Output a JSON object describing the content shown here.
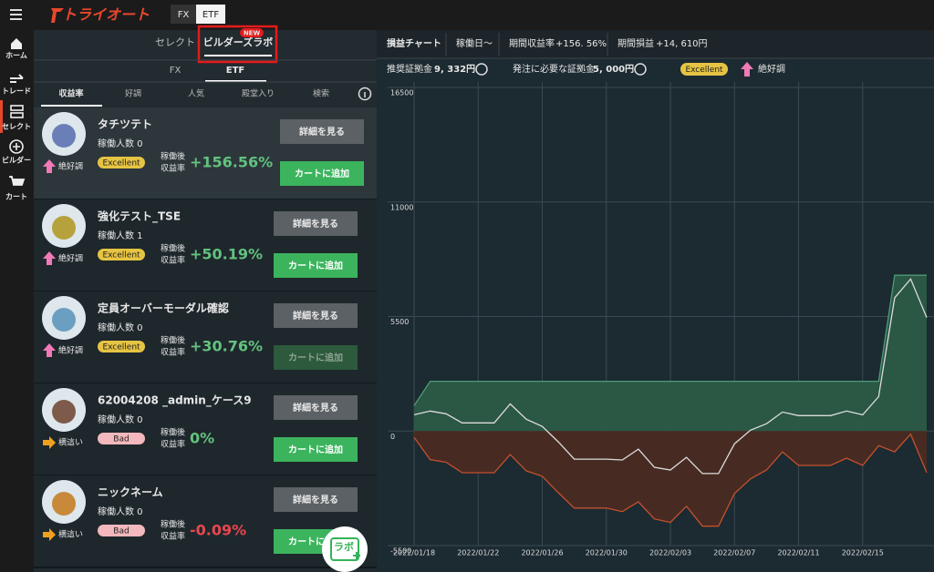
{
  "header": {
    "logo": "トライオート",
    "tabs": [
      "FX",
      "ETF"
    ]
  },
  "sidebar": [
    "ホーム",
    "トレード",
    "セレクト",
    "ビルダー",
    "カート"
  ],
  "panel": {
    "tabs": [
      "セレクト",
      "ビルダーズラボ"
    ],
    "badge": "NEW",
    "markets": [
      "FX",
      "ETF"
    ],
    "sort_tabs": [
      "収益率",
      "好調",
      "人気",
      "殿堂入り",
      "検索"
    ]
  },
  "cards": [
    {
      "name": "タチツテト",
      "users": "稼働人数 0",
      "rating": "Excellent",
      "rating_color": "#e6c443",
      "trend": "絶好調",
      "trend_icon": "up",
      "return_label": [
        "稼働後",
        "収益率"
      ],
      "return": "+156.56%",
      "return_color": "#63c27f",
      "detail": "詳細を見る",
      "add": "カートに追加",
      "add_enabled": true
    },
    {
      "name": "強化テスト_TSE",
      "users": "稼働人数 1",
      "rating": "Excellent",
      "rating_color": "#e6c443",
      "trend": "絶好調",
      "trend_icon": "up",
      "return_label": [
        "稼働後",
        "収益率"
      ],
      "return": "+50.19%",
      "return_color": "#63c27f",
      "detail": "詳細を見る",
      "add": "カートに追加",
      "add_enabled": true
    },
    {
      "name": "定員オーバーモーダル確認",
      "users": "稼働人数 0",
      "rating": "Excellent",
      "rating_color": "#e6c443",
      "trend": "絶好調",
      "trend_icon": "up",
      "return_label": [
        "稼働後",
        "収益率"
      ],
      "return": "+30.76%",
      "return_color": "#63c27f",
      "detail": "詳細を見る",
      "add": "カートに追加",
      "add_enabled": false
    },
    {
      "name": "62004208 _admin_ケース9",
      "users": "稼働人数 0",
      "rating": "Bad",
      "rating_color": "#f2b8bd",
      "trend": "横這い",
      "trend_icon": "flat",
      "return_label": [
        "稼働後",
        "収益率"
      ],
      "return": "0%",
      "return_color": "#63c27f",
      "detail": "詳細を見る",
      "add": "カートに追加",
      "add_enabled": true
    },
    {
      "name": "ニックネーム",
      "users": "稼働人数 0",
      "rating": "Bad",
      "rating_color": "#f2b8bd",
      "trend": "横這い",
      "trend_icon": "flat",
      "return_label": [
        "稼働後",
        "収益率"
      ],
      "return": "-0.09%",
      "return_color": "#e8474f",
      "detail": "詳細を見る",
      "add": "カートに追加",
      "add_enabled": true
    }
  ],
  "lab_button": "ラボ",
  "chart_panel": {
    "tabs": [
      "損益チャート",
      "稼働日〜"
    ],
    "period_return_label": "期間収益率",
    "period_return": "+156. 56%",
    "period_pl_label": "期間損益",
    "period_pl": "+14, 610円",
    "margin_label": "推奨証拠金",
    "margin": "9, 332円",
    "order_margin_label": "発注に必要な証拠金",
    "order_margin": "5, 000円",
    "rating": "Excellent",
    "trend": "絶好調"
  },
  "chart_data": {
    "type": "area",
    "x": [
      "2022/01/18",
      "2022/01/19",
      "2022/01/20",
      "2022/01/21",
      "2022/01/22",
      "2022/01/23",
      "2022/01/24",
      "2022/01/25",
      "2022/01/26",
      "2022/01/27",
      "2022/01/28",
      "2022/01/29",
      "2022/01/30",
      "2022/01/31",
      "2022/02/01",
      "2022/02/02",
      "2022/02/03",
      "2022/02/04",
      "2022/02/05",
      "2022/02/06",
      "2022/02/07",
      "2022/02/08",
      "2022/02/09",
      "2022/02/10",
      "2022/02/11",
      "2022/02/12",
      "2022/02/13",
      "2022/02/14",
      "2022/02/15",
      "2022/02/16",
      "2022/02/17",
      "2022/02/18",
      "2022/02/19"
    ],
    "xlim": [
      "2022/01/18",
      "2022/02/19"
    ],
    "xticks": [
      "2022/01/18",
      "2022/01/22",
      "2022/01/26",
      "2022/01/30",
      "2022/02/03",
      "2022/02/07",
      "2022/02/11",
      "2022/02/15"
    ],
    "ylim": [
      -5500,
      16500
    ],
    "yticks": [
      16500,
      11000,
      5500,
      0,
      -5500
    ],
    "grid": true,
    "series": [
      {
        "style": "area",
        "color": "#4e9a77",
        "fill": "#2c5a47",
        "values": [
          1220,
          2390,
          2390,
          2390,
          2390,
          2390,
          2390,
          2390,
          2390,
          2390,
          2390,
          2390,
          2390,
          2390,
          2390,
          2390,
          2390,
          2390,
          2390,
          2390,
          2390,
          2390,
          2390,
          2390,
          2390,
          2390,
          2390,
          2390,
          2390,
          2390,
          7480,
          7480,
          7480
        ]
      },
      {
        "style": "area",
        "color": "#c4502e",
        "fill": "#4a2b23",
        "values": [
          -300,
          -1370,
          -1500,
          -2000,
          -2000,
          -2000,
          -1130,
          -1910,
          -2170,
          -2960,
          -3700,
          -3700,
          -3700,
          -3870,
          -3400,
          -4220,
          -4390,
          -3610,
          -4570,
          -4570,
          -3000,
          -2300,
          -1870,
          -1000,
          -1650,
          -1650,
          -1650,
          -1300,
          -1650,
          -700,
          -1000,
          -150,
          -2000
        ]
      },
      {
        "style": "line",
        "color": "#dcdcdc",
        "values": [
          780,
          960,
          830,
          390,
          390,
          390,
          1300,
          570,
          220,
          -520,
          -1350,
          -1350,
          -1350,
          -1390,
          -870,
          -1740,
          -1870,
          -1260,
          -2040,
          -2040,
          -610,
          40,
          350,
          910,
          740,
          740,
          740,
          960,
          780,
          1650,
          6400,
          7300,
          5450
        ]
      }
    ]
  }
}
